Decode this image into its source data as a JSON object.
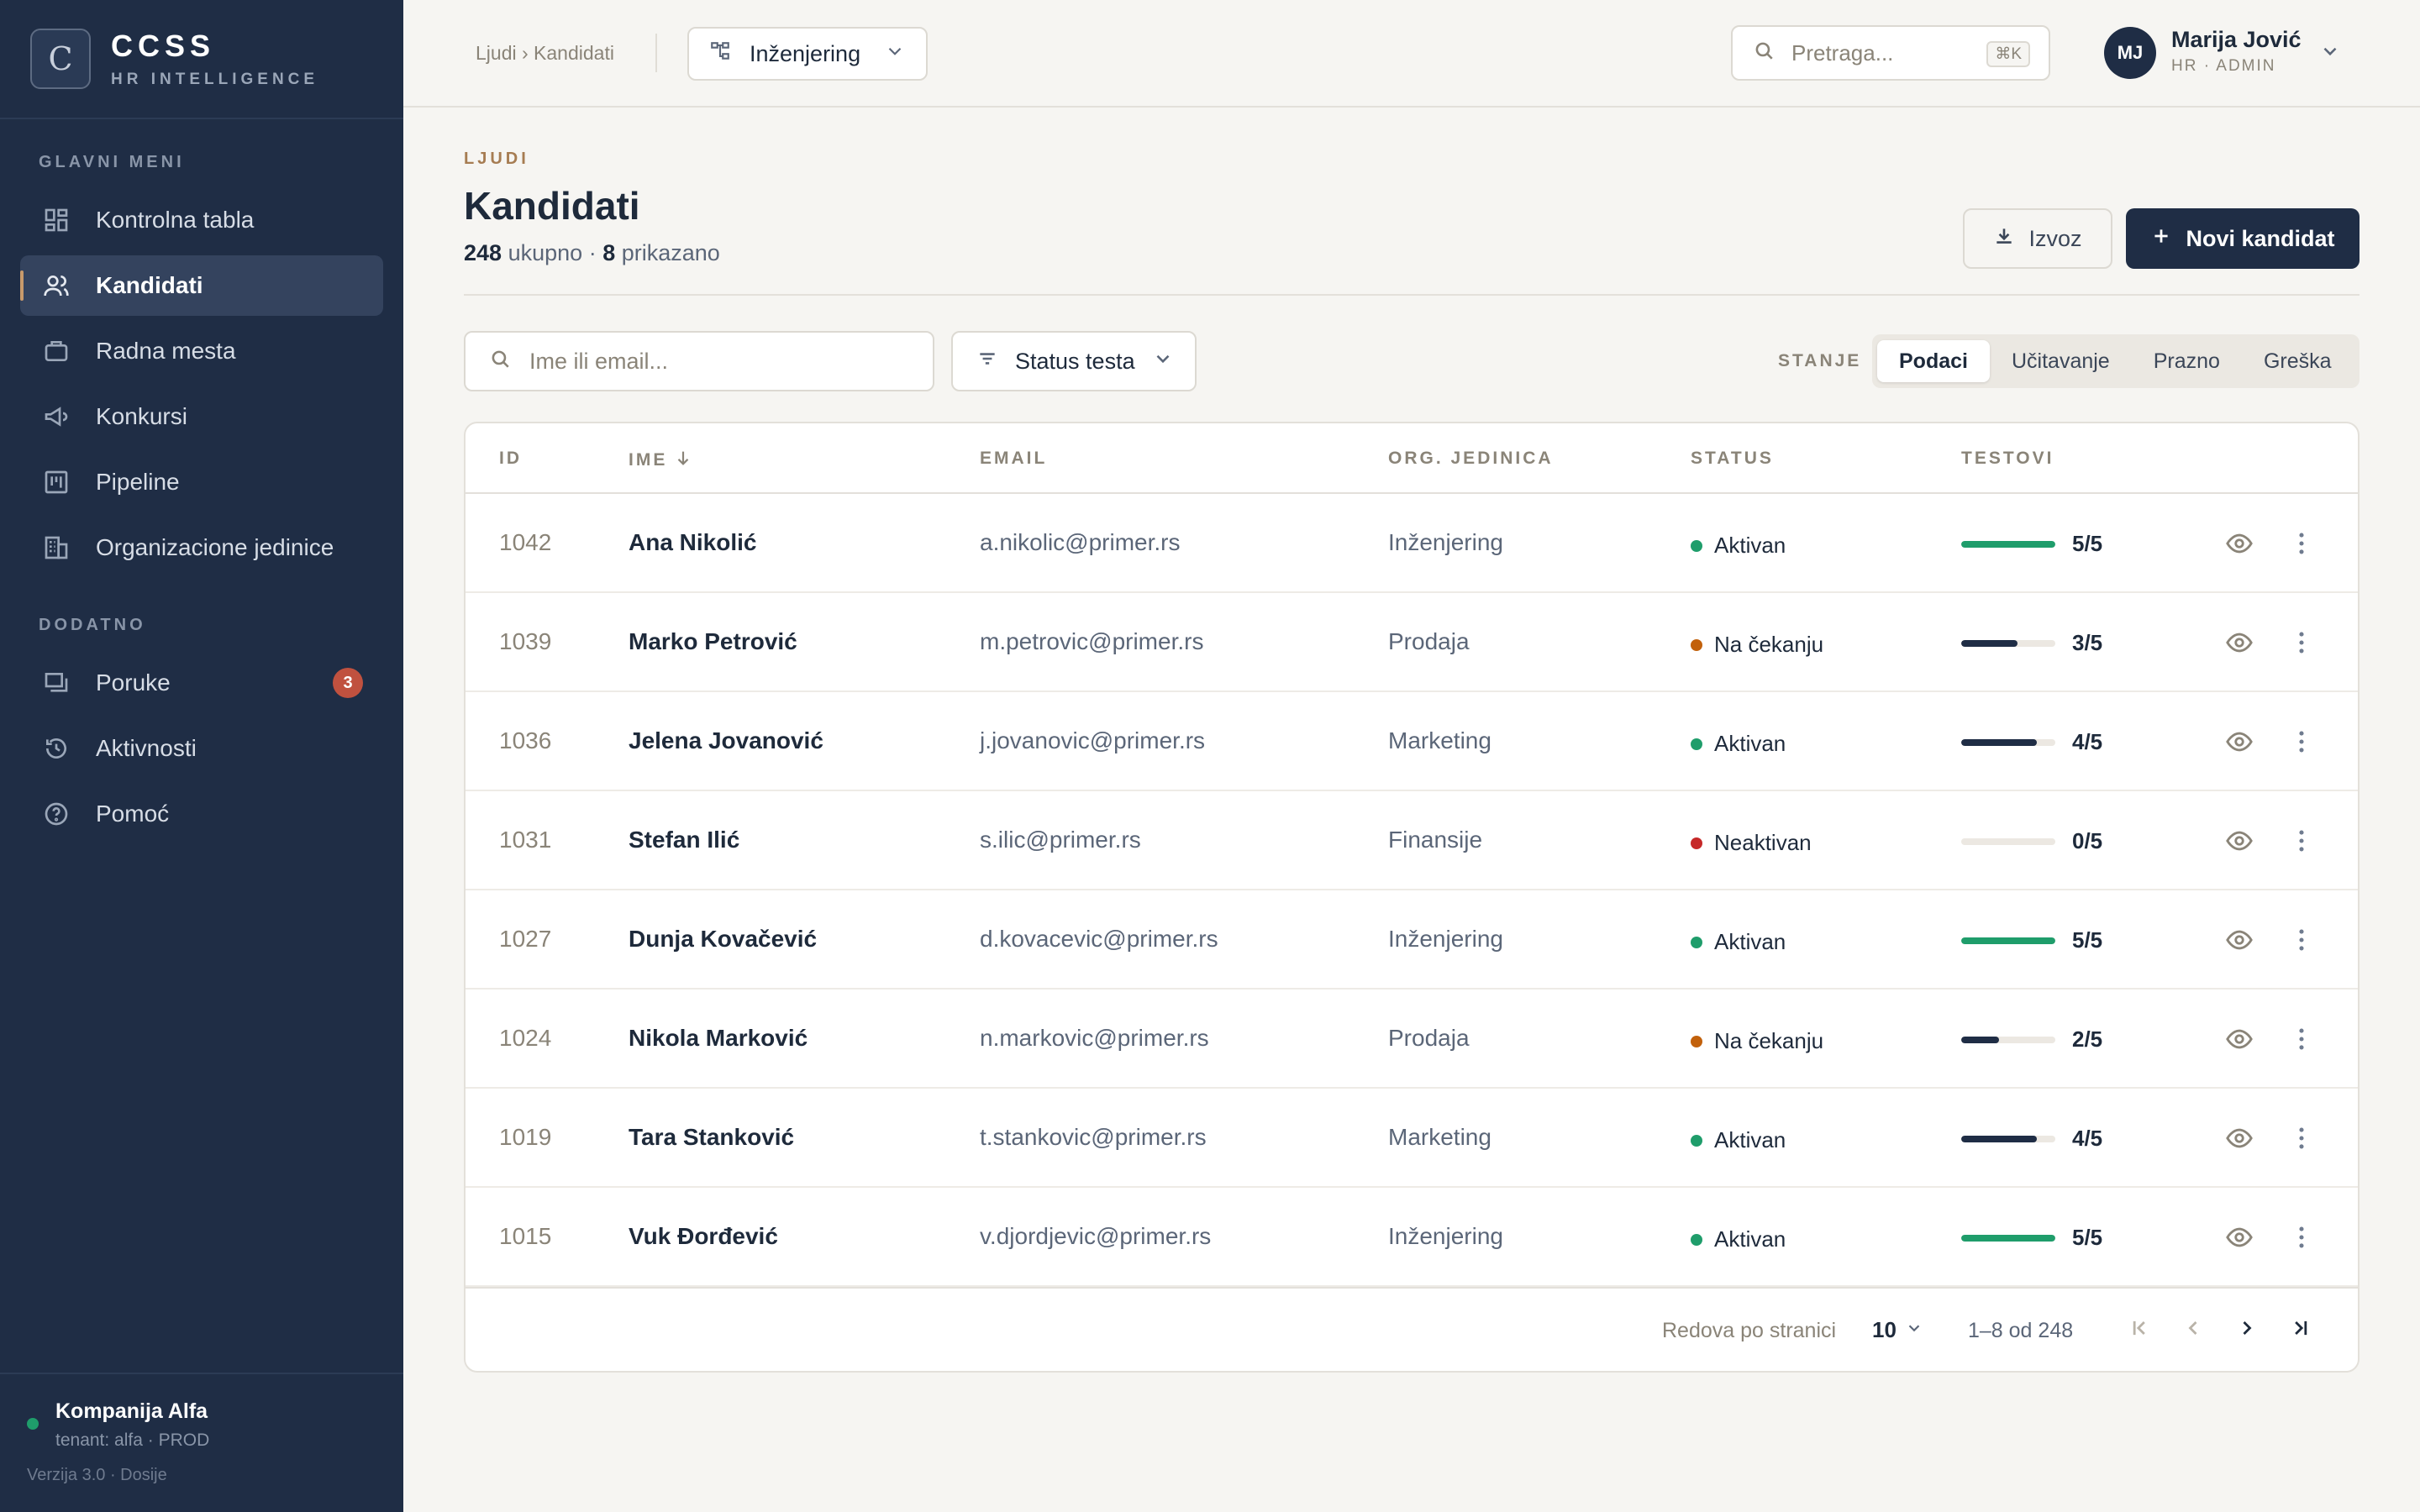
{
  "brand": {
    "logo_letter": "C",
    "name": "CCSS",
    "tagline": "HR INTELLIGENCE"
  },
  "sidebar": {
    "main_label": "GLAVNI MENI",
    "items": [
      {
        "label": "Kontrolna tabla",
        "icon": "dashboard-icon"
      },
      {
        "label": "Kandidati",
        "icon": "users-icon",
        "active": true
      },
      {
        "label": "Radna mesta",
        "icon": "briefcase-icon"
      },
      {
        "label": "Konkursi",
        "icon": "megaphone-icon"
      },
      {
        "label": "Pipeline",
        "icon": "kanban-icon"
      },
      {
        "label": "Organizacione jedinice",
        "icon": "building-icon"
      }
    ],
    "extra_label": "DODATNO",
    "extra_items": [
      {
        "label": "Poruke",
        "icon": "message-icon",
        "badge": "3"
      },
      {
        "label": "Aktivnosti",
        "icon": "history-icon"
      },
      {
        "label": "Pomoć",
        "icon": "help-icon"
      }
    ],
    "tenant": {
      "name": "Kompanija Alfa",
      "sub": "tenant: alfa · PROD",
      "status_color": "#1f9d6b"
    },
    "version": "Verzija 3.0 · Dosije"
  },
  "topbar": {
    "breadcrumb": "Ljudi › Kandidati",
    "department": "Inženjering",
    "search_placeholder": "Pretraga...",
    "search_shortcut": "⌘K",
    "user": {
      "initials": "MJ",
      "name": "Marija Jović",
      "role": "HR · ADMIN"
    }
  },
  "page": {
    "eyebrow": "LJUDI",
    "title": "Kandidati",
    "total": "248",
    "total_label": "ukupno",
    "separator": "·",
    "shown": "8",
    "shown_label": "prikazano",
    "export_label": "Izvoz",
    "new_label": "Novi kandidat"
  },
  "filters": {
    "search_placeholder": "Ime ili email...",
    "status_label": "Status testa",
    "state_label": "STANJE",
    "states": [
      "Podaci",
      "Učitavanje",
      "Prazno",
      "Greška"
    ],
    "active_state": "Podaci"
  },
  "table": {
    "columns": {
      "id": "ID",
      "name": "IME",
      "email": "EMAIL",
      "org": "ORG. JEDINICA",
      "status": "STATUS",
      "tests": "TESTOVI"
    },
    "rows": [
      {
        "id": "1042",
        "name": "Ana Nikolić",
        "email": "a.nikolic@primer.rs",
        "org": "Inženjering",
        "status": "Aktivan",
        "tests": "5/5",
        "progress": 1.0
      },
      {
        "id": "1039",
        "name": "Marko Petrović",
        "email": "m.petrovic@primer.rs",
        "org": "Prodaja",
        "status": "Na čekanju",
        "tests": "3/5",
        "progress": 0.6
      },
      {
        "id": "1036",
        "name": "Jelena Jovanović",
        "email": "j.jovanovic@primer.rs",
        "org": "Marketing",
        "status": "Aktivan",
        "tests": "4/5",
        "progress": 0.8
      },
      {
        "id": "1031",
        "name": "Stefan Ilić",
        "email": "s.ilic@primer.rs",
        "org": "Finansije",
        "status": "Neaktivan",
        "tests": "0/5",
        "progress": 0.0
      },
      {
        "id": "1027",
        "name": "Dunja Kovačević",
        "email": "d.kovacevic@primer.rs",
        "org": "Inženjering",
        "status": "Aktivan",
        "tests": "5/5",
        "progress": 1.0
      },
      {
        "id": "1024",
        "name": "Nikola Marković",
        "email": "n.markovic@primer.rs",
        "org": "Prodaja",
        "status": "Na čekanju",
        "tests": "2/5",
        "progress": 0.4
      },
      {
        "id": "1019",
        "name": "Tara Stanković",
        "email": "t.stankovic@primer.rs",
        "org": "Marketing",
        "status": "Aktivan",
        "tests": "4/5",
        "progress": 0.8
      },
      {
        "id": "1015",
        "name": "Vuk Đorđević",
        "email": "v.djordjevic@primer.rs",
        "org": "Inženjering",
        "status": "Aktivan",
        "tests": "5/5",
        "progress": 1.0
      }
    ],
    "status_colors": {
      "Aktivan": "#1f9d6b",
      "Na čekanju": "#c2610c",
      "Neaktivan": "#c62828"
    },
    "progress_colors": {
      "complete": "#1f9d6b",
      "partial": "#1f2d45"
    }
  },
  "pagination": {
    "rows_per_page_label": "Redova po stranici",
    "rows_per_page": "10",
    "range": "1–8 od 248"
  }
}
